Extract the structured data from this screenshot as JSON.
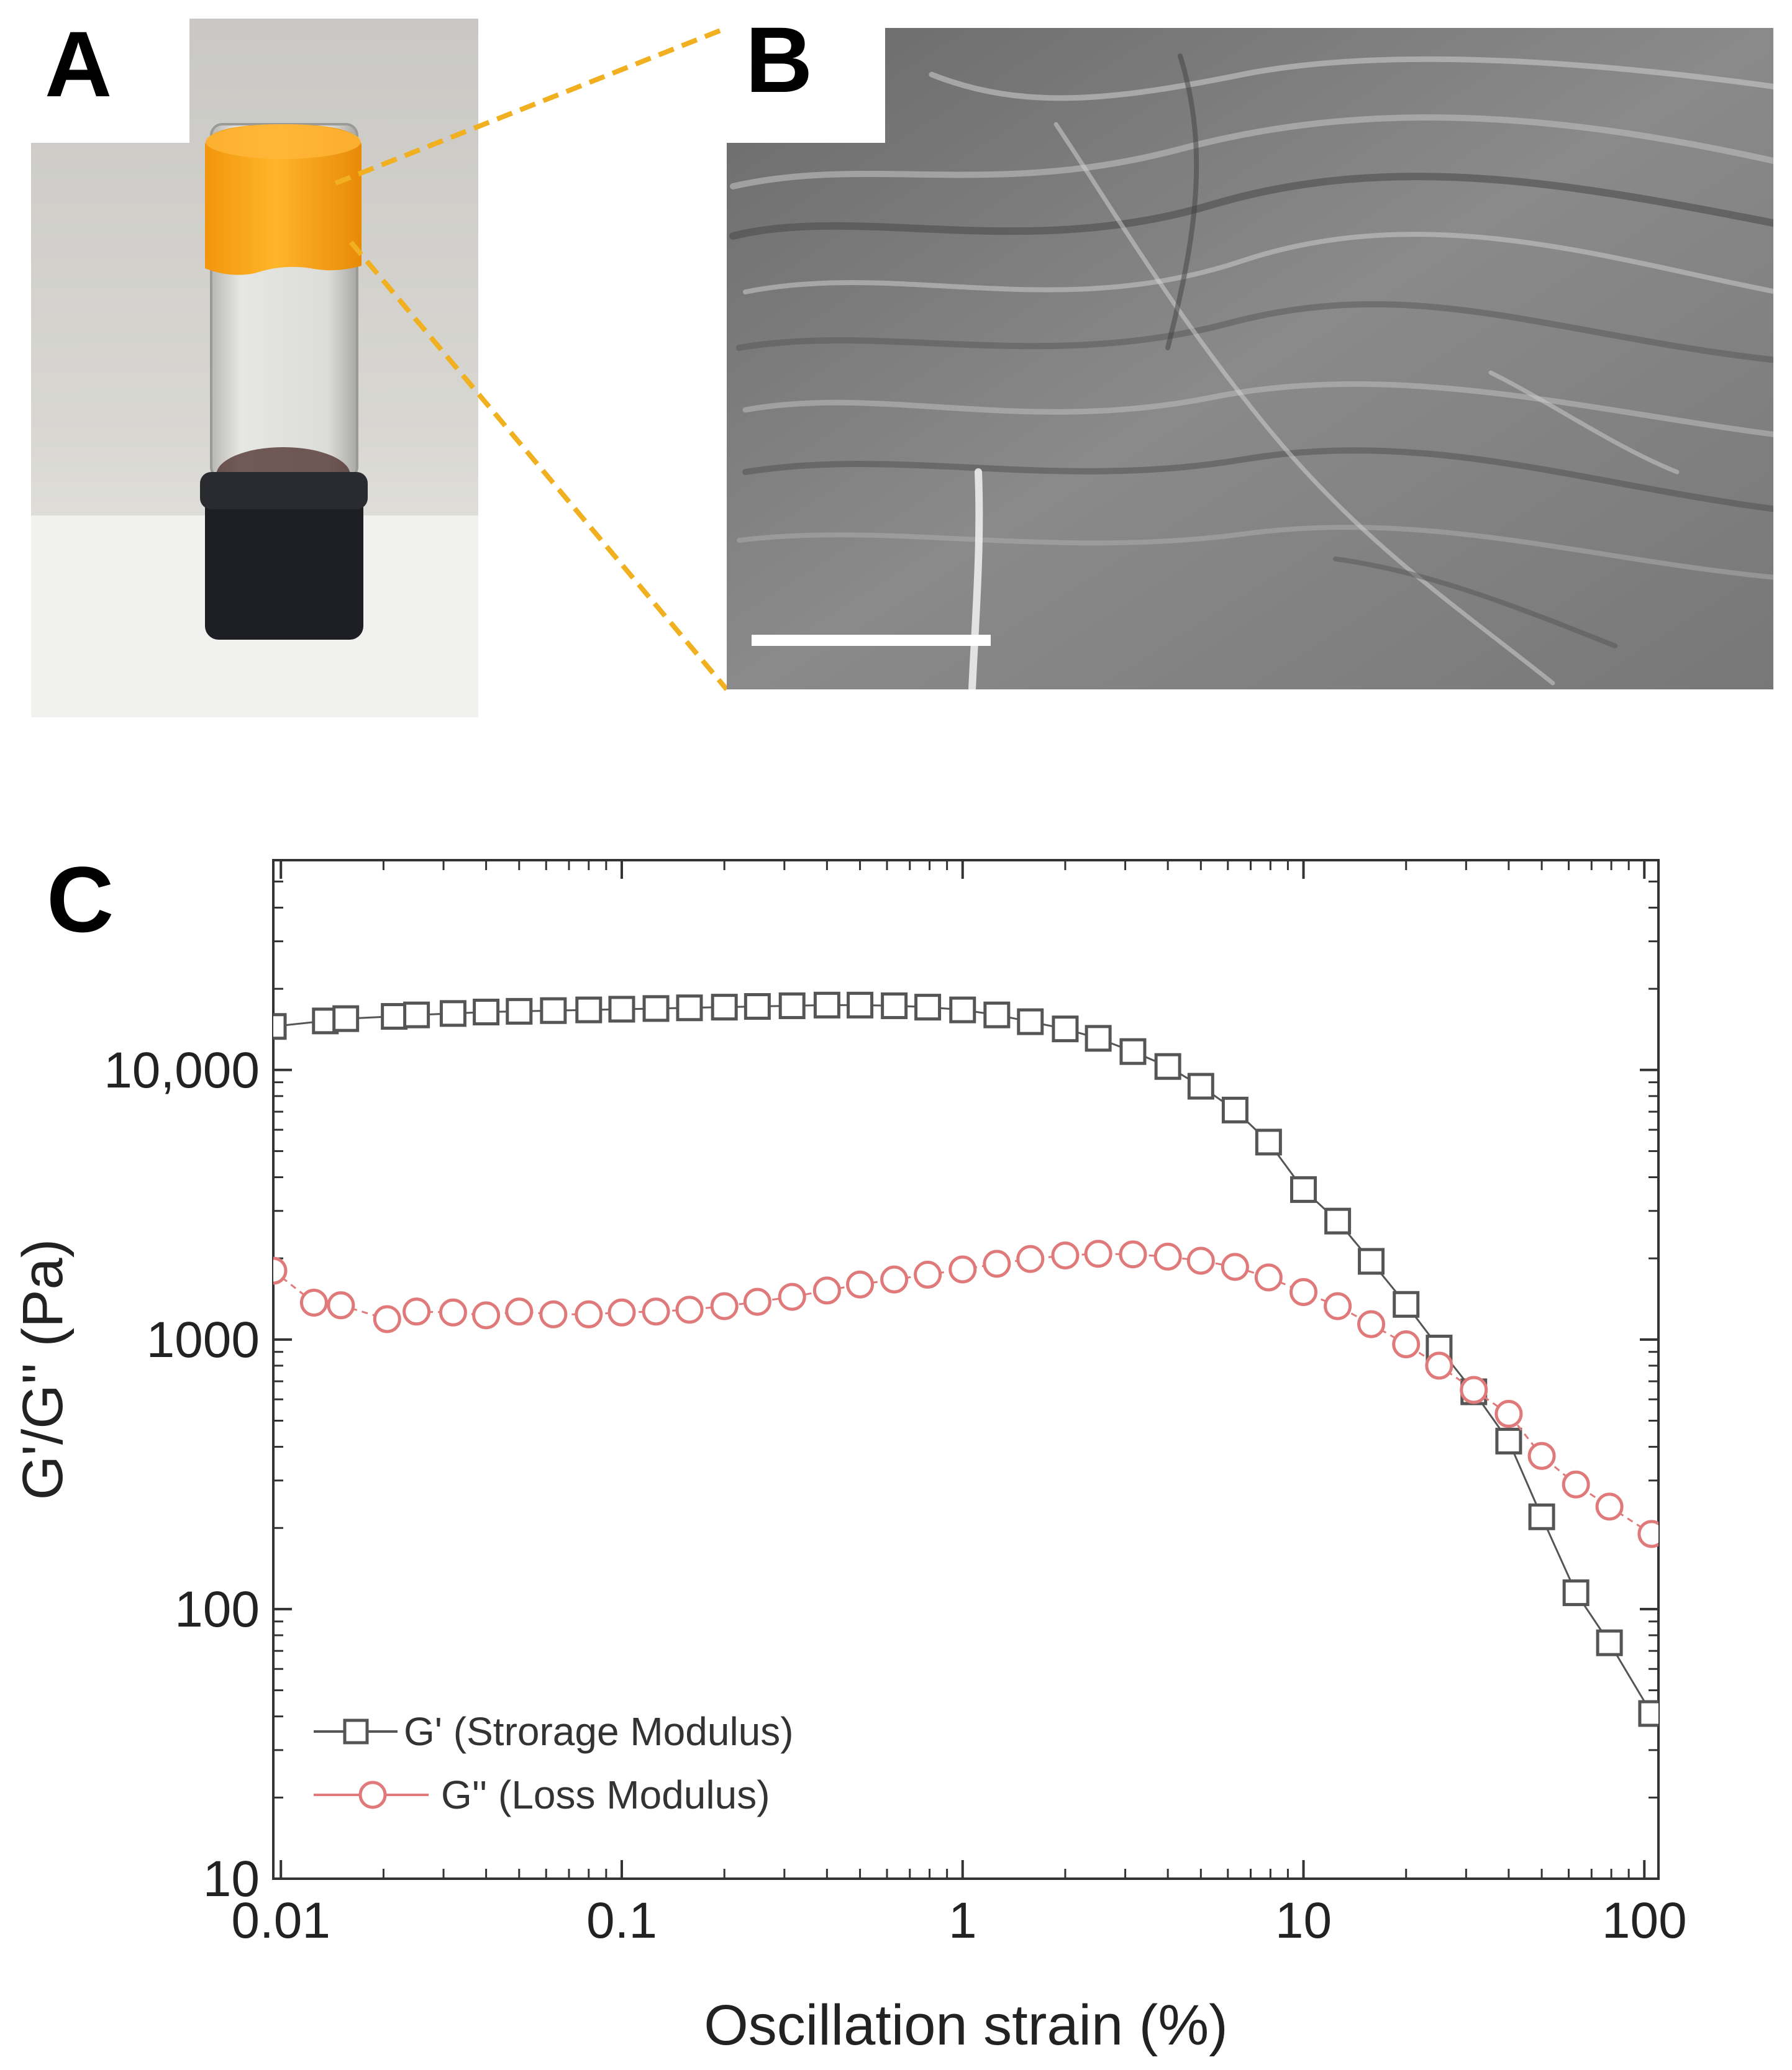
{
  "panels": {
    "a": "A",
    "b": "B",
    "c": "C"
  },
  "colors": {
    "gel": "#f5a41a",
    "zoom_line": "#f0b020",
    "storage": "#555555",
    "loss": "#e07a7a",
    "axis": "#333333"
  },
  "chart_data": {
    "type": "scatter",
    "title": "",
    "xlabel": "Oscillation strain (%)",
    "ylabel": "G'/G'' (Pa)",
    "xscale": "log",
    "yscale": "log",
    "xlim": [
      0.0095,
      110
    ],
    "ylim": [
      10,
      60000
    ],
    "xticks": [
      {
        "value": 0.01,
        "label": "0.01"
      },
      {
        "value": 0.1,
        "label": "0.1"
      },
      {
        "value": 1,
        "label": "1"
      },
      {
        "value": 10,
        "label": "10"
      },
      {
        "value": 100,
        "label": "100"
      }
    ],
    "yticks": [
      {
        "value": 10,
        "label": "10"
      },
      {
        "value": 100,
        "label": "100"
      },
      {
        "value": 1000,
        "label": "1000"
      },
      {
        "value": 10000,
        "label": "10,000"
      }
    ],
    "legend_position": "bottom-left",
    "series": [
      {
        "name": "G' (Strorage Modulus)",
        "marker": "square",
        "color": "#555555",
        "points": [
          [
            0.0095,
            14500
          ],
          [
            0.0135,
            15200
          ],
          [
            0.0155,
            15500
          ],
          [
            0.0215,
            15800
          ],
          [
            0.025,
            16000
          ],
          [
            0.032,
            16200
          ],
          [
            0.04,
            16400
          ],
          [
            0.05,
            16500
          ],
          [
            0.063,
            16600
          ],
          [
            0.08,
            16700
          ],
          [
            0.1,
            16800
          ],
          [
            0.126,
            16900
          ],
          [
            0.158,
            17000
          ],
          [
            0.2,
            17100
          ],
          [
            0.25,
            17200
          ],
          [
            0.316,
            17300
          ],
          [
            0.4,
            17400
          ],
          [
            0.5,
            17400
          ],
          [
            0.63,
            17300
          ],
          [
            0.79,
            17100
          ],
          [
            1.0,
            16700
          ],
          [
            1.26,
            16000
          ],
          [
            1.58,
            15100
          ],
          [
            2.0,
            14200
          ],
          [
            2.5,
            13100
          ],
          [
            3.16,
            11700
          ],
          [
            4.0,
            10300
          ],
          [
            5.0,
            8700
          ],
          [
            6.3,
            7100
          ],
          [
            7.9,
            5400
          ],
          [
            10,
            3600
          ],
          [
            12.6,
            2750
          ],
          [
            15.8,
            1950
          ],
          [
            20,
            1350
          ],
          [
            25,
            930
          ],
          [
            31.6,
            640
          ],
          [
            40,
            420
          ],
          [
            50,
            220
          ],
          [
            63,
            115
          ],
          [
            79,
            75
          ],
          [
            105,
            41
          ]
        ]
      },
      {
        "name": "G'' (Loss Modulus)",
        "marker": "circle",
        "color": "#e07a7a",
        "points": [
          [
            0.0095,
            1800
          ],
          [
            0.0125,
            1370
          ],
          [
            0.015,
            1340
          ],
          [
            0.0205,
            1190
          ],
          [
            0.025,
            1270
          ],
          [
            0.032,
            1260
          ],
          [
            0.04,
            1230
          ],
          [
            0.05,
            1270
          ],
          [
            0.063,
            1240
          ],
          [
            0.08,
            1240
          ],
          [
            0.1,
            1260
          ],
          [
            0.126,
            1270
          ],
          [
            0.158,
            1290
          ],
          [
            0.2,
            1330
          ],
          [
            0.25,
            1380
          ],
          [
            0.316,
            1440
          ],
          [
            0.4,
            1520
          ],
          [
            0.5,
            1600
          ],
          [
            0.63,
            1670
          ],
          [
            0.79,
            1740
          ],
          [
            1.0,
            1820
          ],
          [
            1.26,
            1910
          ],
          [
            1.58,
            1990
          ],
          [
            2.0,
            2050
          ],
          [
            2.5,
            2080
          ],
          [
            3.16,
            2070
          ],
          [
            4.0,
            2030
          ],
          [
            5.0,
            1960
          ],
          [
            6.3,
            1860
          ],
          [
            7.9,
            1700
          ],
          [
            10,
            1500
          ],
          [
            12.6,
            1330
          ],
          [
            15.8,
            1140
          ],
          [
            20,
            960
          ],
          [
            25,
            800
          ],
          [
            31.6,
            650
          ],
          [
            40,
            530
          ],
          [
            50,
            370
          ],
          [
            63,
            290
          ],
          [
            79,
            240
          ],
          [
            105,
            190
          ]
        ]
      }
    ]
  }
}
